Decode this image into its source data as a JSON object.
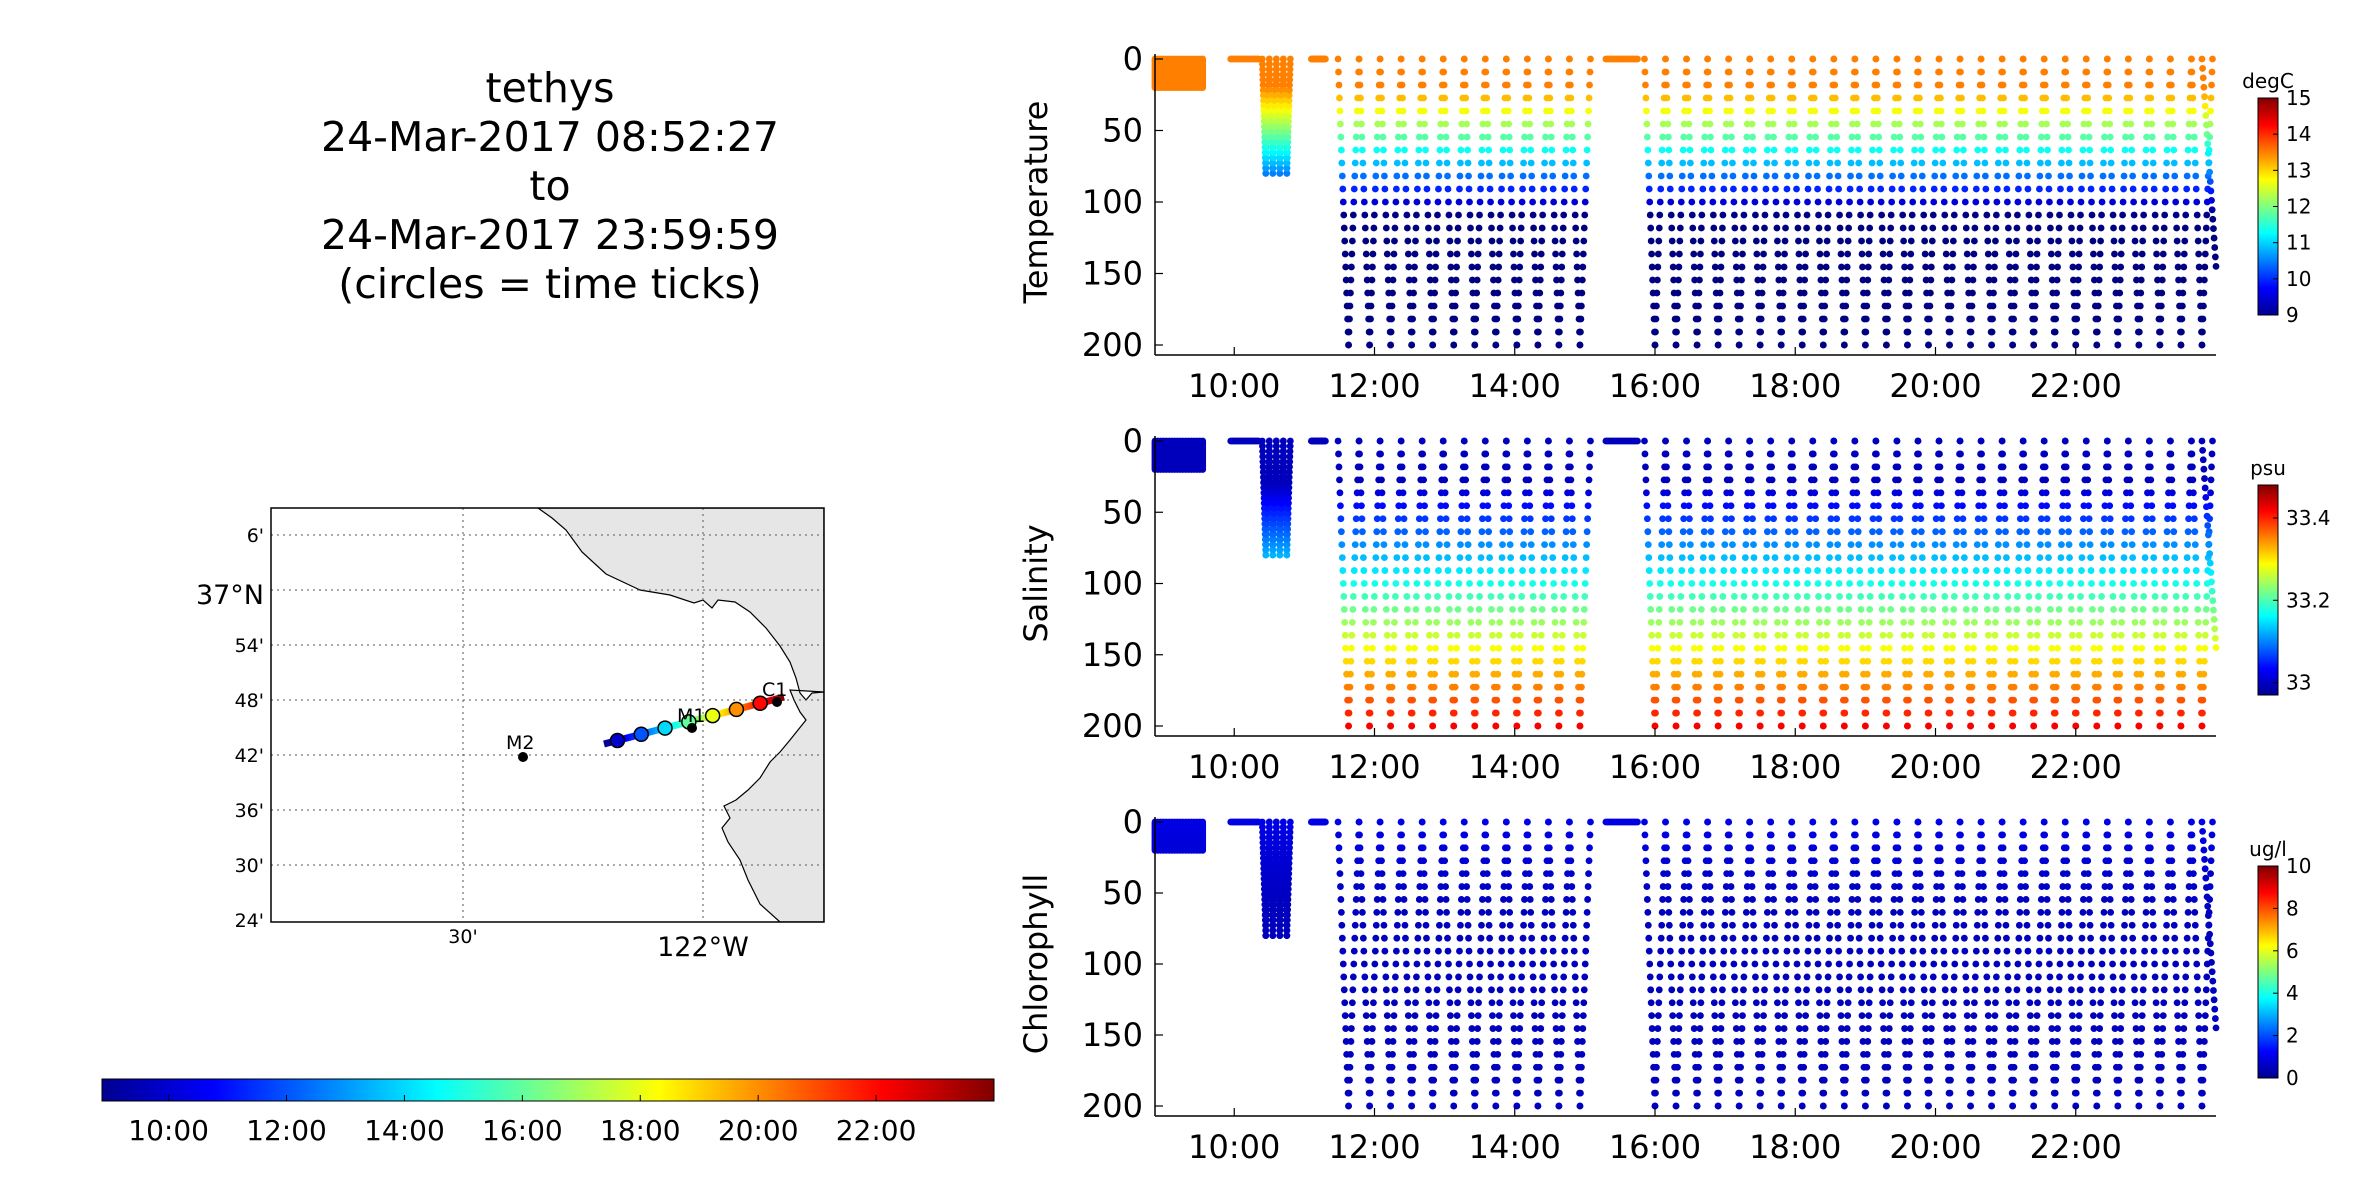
{
  "header": {
    "line1": "tethys",
    "line2": "24-Mar-2017 08:52:27",
    "line3": "to",
    "line4": "24-Mar-2017 23:59:59",
    "line5": "(circles = time ticks)"
  },
  "map": {
    "lat_ticks": [
      "6'",
      "37°N",
      "54'",
      "48'",
      "42'",
      "36'",
      "30'",
      "24'"
    ],
    "lon_ticks": [
      "30'",
      "122°W"
    ],
    "stations": [
      {
        "label": "C1",
        "lon": -121.85,
        "lat": 36.8
      },
      {
        "label": "M1",
        "lon": -122.02,
        "lat": 36.75
      },
      {
        "label": "M2",
        "lon": -122.39,
        "lat": 36.7
      }
    ],
    "land_color": "#e6e6e6"
  },
  "time_colorbar": {
    "ticks": [
      "10:00",
      "12:00",
      "14:00",
      "16:00",
      "18:00",
      "20:00",
      "22:00"
    ]
  },
  "chart_data": [
    {
      "type": "scatter",
      "ylabel": "Temperature",
      "units": "degC",
      "ylim": [
        200,
        0
      ],
      "yticks": [
        0,
        50,
        100,
        150,
        200
      ],
      "xticks": [
        "10:00",
        "12:00",
        "14:00",
        "16:00",
        "18:00",
        "20:00",
        "22:00"
      ],
      "xlim_hours": [
        8.87,
        24.0
      ],
      "clim": [
        9,
        15
      ],
      "cticks": [
        9,
        10,
        11,
        12,
        13,
        14,
        15
      ],
      "colormap": "jet"
    },
    {
      "type": "scatter",
      "ylabel": "Salinity",
      "units": "psu",
      "ylim": [
        200,
        0
      ],
      "yticks": [
        0,
        50,
        100,
        150,
        200
      ],
      "xticks": [
        "10:00",
        "12:00",
        "14:00",
        "16:00",
        "18:00",
        "20:00",
        "22:00"
      ],
      "xlim_hours": [
        8.87,
        24.0
      ],
      "clim": [
        32.97,
        33.48
      ],
      "cticks": [
        33,
        33.2,
        33.4
      ],
      "colormap": "jet"
    },
    {
      "type": "scatter",
      "ylabel": "Chlorophyll",
      "units": "ug/l",
      "ylim": [
        200,
        0
      ],
      "yticks": [
        0,
        50,
        100,
        150,
        200
      ],
      "xticks": [
        "10:00",
        "12:00",
        "14:00",
        "16:00",
        "18:00",
        "20:00",
        "22:00"
      ],
      "xlim_hours": [
        8.87,
        24.0
      ],
      "clim": [
        0,
        10
      ],
      "cticks": [
        0,
        2,
        4,
        6,
        8,
        10
      ],
      "colormap": "jet"
    }
  ],
  "track": {
    "time_ticks": [
      "10:00",
      "12:00",
      "14:00",
      "16:00",
      "18:00",
      "20:00",
      "22:00"
    ]
  }
}
